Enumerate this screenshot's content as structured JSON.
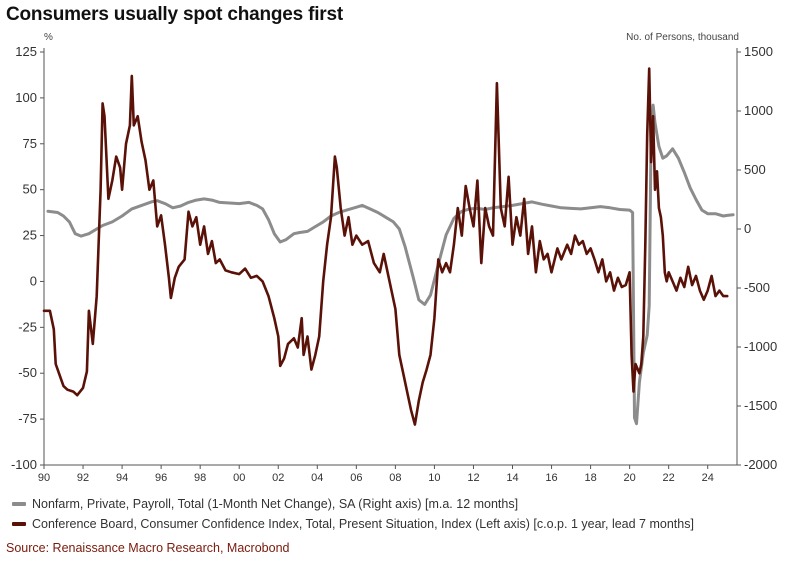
{
  "title": "Consumers usually spot changes first",
  "source": "Source: Renaissance Macro Research, Macrobond",
  "colors": {
    "nfp": "#8c8c8c",
    "conf": "#5a1208",
    "source": "#7a1a0c"
  },
  "chart_data": {
    "type": "line",
    "left_axis_unit": "%",
    "right_axis_unit": "No. of Persons, thousand",
    "left_ylim": [
      -100,
      125
    ],
    "right_ylim": [
      -2000,
      1500
    ],
    "left_ticks": [
      "125",
      "100",
      "75",
      "50",
      "25",
      "0",
      "-25",
      "-50",
      "-75",
      "-100"
    ],
    "right_ticks": [
      "1500",
      "1000",
      "500",
      "0",
      "-500",
      "-1000",
      "-1500",
      "-2000"
    ],
    "x_ticks": [
      "90",
      "92",
      "94",
      "96",
      "98",
      "00",
      "02",
      "04",
      "06",
      "08",
      "10",
      "12",
      "14",
      "16",
      "18",
      "20",
      "22",
      "24"
    ],
    "xlim": [
      1990,
      2025.5
    ],
    "series": [
      {
        "name": "Nonfarm, Private, Payroll, Total (1-Month Net Change), SA (Right axis) [m.a. 12 months]",
        "axis": "right",
        "points": [
          [
            1990.2,
            150
          ],
          [
            1990.7,
            140
          ],
          [
            1991.0,
            110
          ],
          [
            1991.3,
            60
          ],
          [
            1991.6,
            -40
          ],
          [
            1991.9,
            -60
          ],
          [
            1992.3,
            -40
          ],
          [
            1992.7,
            0
          ],
          [
            1993.0,
            30
          ],
          [
            1993.5,
            60
          ],
          [
            1994.0,
            110
          ],
          [
            1994.5,
            170
          ],
          [
            1995.0,
            200
          ],
          [
            1995.5,
            230
          ],
          [
            1995.8,
            240
          ],
          [
            1996.2,
            215
          ],
          [
            1996.6,
            180
          ],
          [
            1997.0,
            195
          ],
          [
            1997.4,
            225
          ],
          [
            1997.8,
            245
          ],
          [
            1998.2,
            255
          ],
          [
            1998.6,
            245
          ],
          [
            1999.0,
            225
          ],
          [
            1999.5,
            220
          ],
          [
            2000.0,
            215
          ],
          [
            2000.5,
            225
          ],
          [
            2000.9,
            200
          ],
          [
            2001.2,
            170
          ],
          [
            2001.5,
            80
          ],
          [
            2001.8,
            -40
          ],
          [
            2002.1,
            -110
          ],
          [
            2002.4,
            -90
          ],
          [
            2002.8,
            -40
          ],
          [
            2003.1,
            -30
          ],
          [
            2003.5,
            -20
          ],
          [
            2003.9,
            20
          ],
          [
            2004.3,
            60
          ],
          [
            2004.7,
            110
          ],
          [
            2005.1,
            140
          ],
          [
            2005.5,
            160
          ],
          [
            2005.9,
            180
          ],
          [
            2006.3,
            200
          ],
          [
            2006.7,
            170
          ],
          [
            2007.1,
            140
          ],
          [
            2007.5,
            100
          ],
          [
            2007.9,
            60
          ],
          [
            2008.2,
            0
          ],
          [
            2008.5,
            -150
          ],
          [
            2008.9,
            -400
          ],
          [
            2009.2,
            -600
          ],
          [
            2009.5,
            -640
          ],
          [
            2009.8,
            -560
          ],
          [
            2010.2,
            -300
          ],
          [
            2010.6,
            -50
          ],
          [
            2011.0,
            90
          ],
          [
            2011.4,
            150
          ],
          [
            2011.8,
            170
          ],
          [
            2012.2,
            175
          ],
          [
            2012.6,
            165
          ],
          [
            2013.0,
            180
          ],
          [
            2013.5,
            190
          ],
          [
            2014.0,
            200
          ],
          [
            2014.5,
            215
          ],
          [
            2015.0,
            230
          ],
          [
            2015.5,
            210
          ],
          [
            2016.0,
            195
          ],
          [
            2016.5,
            180
          ],
          [
            2017.0,
            175
          ],
          [
            2017.5,
            170
          ],
          [
            2018.0,
            180
          ],
          [
            2018.5,
            190
          ],
          [
            2019.0,
            180
          ],
          [
            2019.5,
            165
          ],
          [
            2020.0,
            160
          ],
          [
            2020.15,
            140
          ],
          [
            2020.25,
            -1600
          ],
          [
            2020.35,
            -1650
          ],
          [
            2020.5,
            -1300
          ],
          [
            2020.7,
            -1050
          ],
          [
            2020.9,
            -900
          ],
          [
            2021.0,
            -650
          ],
          [
            2021.1,
            800
          ],
          [
            2021.2,
            1050
          ],
          [
            2021.3,
            900
          ],
          [
            2021.5,
            700
          ],
          [
            2021.7,
            600
          ],
          [
            2021.9,
            620
          ],
          [
            2022.2,
            680
          ],
          [
            2022.5,
            600
          ],
          [
            2022.8,
            480
          ],
          [
            2023.1,
            350
          ],
          [
            2023.4,
            250
          ],
          [
            2023.7,
            160
          ],
          [
            2024.0,
            130
          ],
          [
            2024.4,
            130
          ],
          [
            2024.8,
            110
          ],
          [
            2025.0,
            115
          ],
          [
            2025.3,
            120
          ]
        ]
      },
      {
        "name": "Conference Board, Consumer Confidence Index, Total, Present Situation, Index (Left axis) [c.o.p. 1 year, lead 7 months]",
        "axis": "left",
        "points": [
          [
            1990.0,
            -16
          ],
          [
            1990.3,
            -16
          ],
          [
            1990.5,
            -26
          ],
          [
            1990.6,
            -45
          ],
          [
            1990.8,
            -51
          ],
          [
            1991.0,
            -57
          ],
          [
            1991.2,
            -59
          ],
          [
            1991.5,
            -60
          ],
          [
            1991.7,
            -62
          ],
          [
            1992.0,
            -58
          ],
          [
            1992.2,
            -49
          ],
          [
            1992.3,
            -16
          ],
          [
            1992.5,
            -34
          ],
          [
            1992.7,
            -8
          ],
          [
            1992.9,
            50
          ],
          [
            1993.0,
            97
          ],
          [
            1993.1,
            90
          ],
          [
            1993.3,
            45
          ],
          [
            1993.5,
            55
          ],
          [
            1993.7,
            68
          ],
          [
            1993.9,
            62
          ],
          [
            1994.0,
            50
          ],
          [
            1994.2,
            75
          ],
          [
            1994.4,
            85
          ],
          [
            1994.5,
            112
          ],
          [
            1994.6,
            85
          ],
          [
            1994.8,
            90
          ],
          [
            1995.0,
            76
          ],
          [
            1995.2,
            66
          ],
          [
            1995.4,
            50
          ],
          [
            1995.6,
            55
          ],
          [
            1995.8,
            30
          ],
          [
            1996.0,
            36
          ],
          [
            1996.2,
            20
          ],
          [
            1996.4,
            2
          ],
          [
            1996.5,
            -9
          ],
          [
            1996.7,
            2
          ],
          [
            1996.9,
            8
          ],
          [
            1997.2,
            12
          ],
          [
            1997.4,
            38
          ],
          [
            1997.6,
            30
          ],
          [
            1997.8,
            35
          ],
          [
            1998.0,
            20
          ],
          [
            1998.2,
            30
          ],
          [
            1998.4,
            15
          ],
          [
            1998.6,
            22
          ],
          [
            1998.8,
            10
          ],
          [
            1999.0,
            12
          ],
          [
            1999.3,
            6
          ],
          [
            1999.6,
            5
          ],
          [
            2000.0,
            4
          ],
          [
            2000.3,
            7
          ],
          [
            2000.6,
            2
          ],
          [
            2000.9,
            3
          ],
          [
            2001.2,
            0
          ],
          [
            2001.5,
            -8
          ],
          [
            2001.8,
            -20
          ],
          [
            2002.0,
            -30
          ],
          [
            2002.1,
            -46
          ],
          [
            2002.3,
            -42
          ],
          [
            2002.5,
            -34
          ],
          [
            2002.8,
            -31
          ],
          [
            2003.0,
            -36
          ],
          [
            2003.2,
            -20
          ],
          [
            2003.3,
            -40
          ],
          [
            2003.5,
            -30
          ],
          [
            2003.7,
            -48
          ],
          [
            2003.9,
            -40
          ],
          [
            2004.1,
            -30
          ],
          [
            2004.3,
            0
          ],
          [
            2004.5,
            20
          ],
          [
            2004.7,
            35
          ],
          [
            2004.9,
            68
          ],
          [
            2005.0,
            62
          ],
          [
            2005.2,
            40
          ],
          [
            2005.4,
            25
          ],
          [
            2005.6,
            35
          ],
          [
            2005.8,
            20
          ],
          [
            2006.0,
            25
          ],
          [
            2006.3,
            20
          ],
          [
            2006.6,
            22
          ],
          [
            2006.9,
            10
          ],
          [
            2007.2,
            5
          ],
          [
            2007.4,
            15
          ],
          [
            2007.6,
            5
          ],
          [
            2007.8,
            -5
          ],
          [
            2008.0,
            -15
          ],
          [
            2008.2,
            -40
          ],
          [
            2008.4,
            -50
          ],
          [
            2008.6,
            -60
          ],
          [
            2008.8,
            -70
          ],
          [
            2009.0,
            -78
          ],
          [
            2009.2,
            -65
          ],
          [
            2009.4,
            -55
          ],
          [
            2009.6,
            -48
          ],
          [
            2009.8,
            -40
          ],
          [
            2010.0,
            -20
          ],
          [
            2010.2,
            12
          ],
          [
            2010.4,
            5
          ],
          [
            2010.6,
            10
          ],
          [
            2010.8,
            5
          ],
          [
            2011.0,
            20
          ],
          [
            2011.2,
            40
          ],
          [
            2011.4,
            25
          ],
          [
            2011.6,
            52
          ],
          [
            2011.8,
            40
          ],
          [
            2012.0,
            30
          ],
          [
            2012.2,
            55
          ],
          [
            2012.4,
            10
          ],
          [
            2012.6,
            40
          ],
          [
            2012.8,
            30
          ],
          [
            2013.0,
            25
          ],
          [
            2013.2,
            108
          ],
          [
            2013.4,
            40
          ],
          [
            2013.6,
            30
          ],
          [
            2013.8,
            57
          ],
          [
            2014.0,
            20
          ],
          [
            2014.2,
            35
          ],
          [
            2014.4,
            25
          ],
          [
            2014.6,
            45
          ],
          [
            2014.8,
            15
          ],
          [
            2015.0,
            30
          ],
          [
            2015.2,
            5
          ],
          [
            2015.4,
            22
          ],
          [
            2015.6,
            12
          ],
          [
            2015.8,
            15
          ],
          [
            2016.0,
            5
          ],
          [
            2016.3,
            18
          ],
          [
            2016.5,
            12
          ],
          [
            2016.8,
            20
          ],
          [
            2017.0,
            15
          ],
          [
            2017.2,
            25
          ],
          [
            2017.4,
            20
          ],
          [
            2017.6,
            22
          ],
          [
            2017.8,
            15
          ],
          [
            2018.0,
            18
          ],
          [
            2018.2,
            12
          ],
          [
            2018.4,
            5
          ],
          [
            2018.6,
            12
          ],
          [
            2018.8,
            0
          ],
          [
            2019.0,
            5
          ],
          [
            2019.2,
            -5
          ],
          [
            2019.4,
            2
          ],
          [
            2019.6,
            -3
          ],
          [
            2019.8,
            -2
          ],
          [
            2020.0,
            5
          ],
          [
            2020.1,
            -40
          ],
          [
            2020.2,
            -60
          ],
          [
            2020.3,
            -45
          ],
          [
            2020.5,
            -50
          ],
          [
            2020.6,
            -45
          ],
          [
            2020.7,
            -30
          ],
          [
            2020.8,
            20
          ],
          [
            2020.9,
            80
          ],
          [
            2021.0,
            116
          ],
          [
            2021.1,
            65
          ],
          [
            2021.2,
            90
          ],
          [
            2021.3,
            50
          ],
          [
            2021.4,
            60
          ],
          [
            2021.5,
            40
          ],
          [
            2021.6,
            35
          ],
          [
            2021.7,
            25
          ],
          [
            2021.8,
            5
          ],
          [
            2021.9,
            0
          ],
          [
            2022.0,
            5
          ],
          [
            2022.2,
            0
          ],
          [
            2022.4,
            -5
          ],
          [
            2022.6,
            2
          ],
          [
            2022.8,
            -3
          ],
          [
            2023.0,
            8
          ],
          [
            2023.2,
            -2
          ],
          [
            2023.4,
            3
          ],
          [
            2023.6,
            -5
          ],
          [
            2023.8,
            -10
          ],
          [
            2024.0,
            -5
          ],
          [
            2024.2,
            3
          ],
          [
            2024.4,
            -8
          ],
          [
            2024.6,
            -5
          ],
          [
            2024.8,
            -8
          ],
          [
            2025.0,
            -8
          ]
        ]
      }
    ]
  }
}
